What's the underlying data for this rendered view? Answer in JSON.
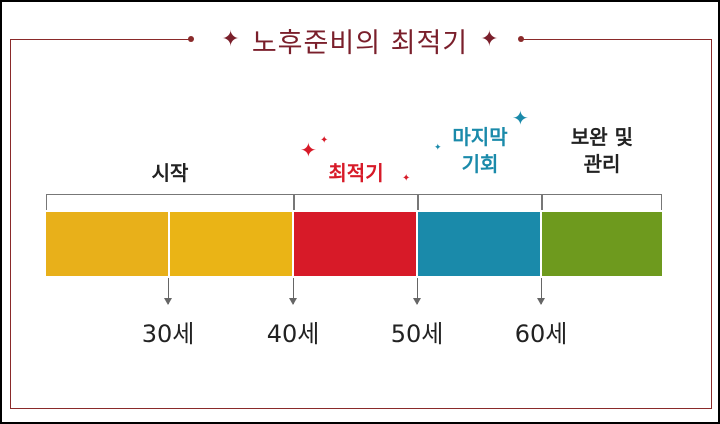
{
  "title": "노후준비의 최적기",
  "stages": [
    {
      "label": "시작",
      "color": "#e8b01a"
    },
    {
      "label": "최적기",
      "color": "#d71a28"
    },
    {
      "label": "마지막 기회",
      "color": "#1a8aaa"
    },
    {
      "label": "보완 및 관리",
      "color": "#6e9a1e"
    }
  ],
  "ages": [
    "30세",
    "40세",
    "50세",
    "60세"
  ],
  "colors": {
    "accent": "#7a1f2b",
    "frame": "#8a2a2a",
    "best": "#d71a28",
    "last": "#1a8aaa",
    "text": "#222222"
  }
}
